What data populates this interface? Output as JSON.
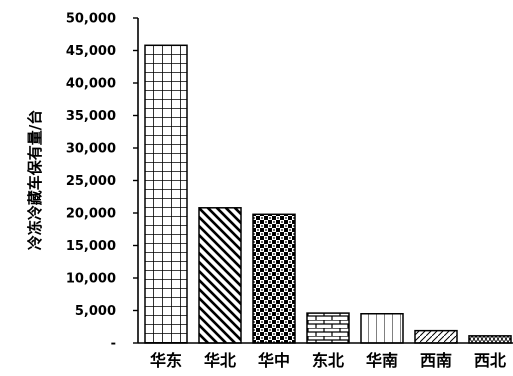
{
  "chart_data": {
    "type": "bar",
    "ylabel": "冷冻冷藏车保有量/台",
    "categories": [
      "华东",
      "华北",
      "华中",
      "东北",
      "华南",
      "西南",
      "西北"
    ],
    "values": [
      45800,
      20800,
      19800,
      4600,
      4500,
      1900,
      1100
    ],
    "ylim": [
      0,
      50000
    ],
    "yticks": [
      0,
      5000,
      10000,
      15000,
      20000,
      25000,
      30000,
      35000,
      40000,
      45000,
      50000
    ],
    "ytick_labels": [
      "-",
      "5,000",
      "10,000",
      "15,000",
      "20,000",
      "25,000",
      "30,000",
      "35,000",
      "40,000",
      "45,000",
      "50,000"
    ],
    "grid": false,
    "legend": "none",
    "bar_patterns": [
      "grid",
      "diagonal-stripes",
      "checker",
      "brick",
      "vertical-lines",
      "diagonal-light",
      "zigzag"
    ]
  }
}
